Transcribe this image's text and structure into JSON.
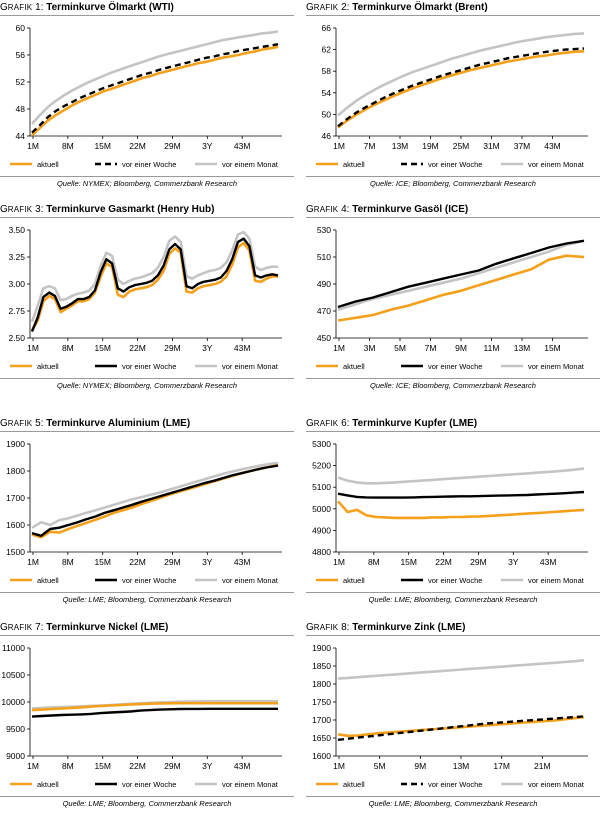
{
  "panels": [
    {
      "prefix": "G",
      "prefix_sc": "RAFIK",
      "number": " 1:",
      "name": " Terminkurve Ölmarkt (WTI)",
      "source": "Quelle: NYMEX; Bloomberg, Commerzbank Research"
    },
    {
      "prefix": "G",
      "prefix_sc": "RAFIK",
      "number": " 2:",
      "name": " Terminkurve Ölmarkt (Brent)",
      "source": "Quelle: ICE; Bloomberg, Commerzbank Research"
    },
    {
      "prefix": "G",
      "prefix_sc": "RAFIK",
      "number": " 3:",
      "name": " Terminkurve Gasmarkt (Henry Hub)",
      "source": "Quelle: NYMEX; Bloomberg, Commerzbank Research"
    },
    {
      "prefix": "G",
      "prefix_sc": "RAFIK",
      "number": " 4:",
      "name": " Terminkurve Gasöl (ICE)",
      "source": "Quelle: ICE; Bloomberg, Commerzbank Research"
    },
    {
      "prefix": "G",
      "prefix_sc": "RAFIK",
      "number": " 5:",
      "name": "  Terminkurve Aluminium (LME)",
      "source": "Quelle: LME; Bloomberg, Commerzbank Research"
    },
    {
      "prefix": "G",
      "prefix_sc": "RAFIK",
      "number": " 6:",
      "name": " Terminkurve Kupfer (LME)",
      "source": "Quelle: LME; Bloomberg, Commerzbank Research"
    },
    {
      "prefix": "G",
      "prefix_sc": "RAFIK",
      "number": " 7:",
      "name": " Terminkurve Nickel (LME)",
      "source": "Quelle: LME; Bloomberg, Commerzbank Research"
    },
    {
      "prefix": "G",
      "prefix_sc": "RAFIK",
      "number": " 8:",
      "name": " Terminkurve Zink (LME)",
      "source": "Quelle: LME; Bloomberg, Commerzbank Research"
    }
  ],
  "colors": {
    "aktuell": "#f5a01a",
    "woche": "#000000",
    "monat": "#c4c4c4",
    "axis": "#000000",
    "rule": "#9a9a9a"
  },
  "chart_data": [
    {
      "type": "line",
      "title": "Terminkurve Ölmarkt (WTI)",
      "x_labels": [
        "1M",
        "8M",
        "15M",
        "22M",
        "29M",
        "3Y",
        "43M"
      ],
      "ylim": [
        44,
        60
      ],
      "yticks": [
        44,
        48,
        52,
        56,
        60
      ],
      "dash_woche": true,
      "series": [
        {
          "name": "aktuell",
          "values": [
            44.1,
            45.2,
            46.3,
            47.1,
            47.8,
            48.5,
            49.1,
            49.6,
            50.1,
            50.6,
            51.0,
            51.4,
            51.8,
            52.2,
            52.6,
            52.9,
            53.3,
            53.6,
            53.9,
            54.2,
            54.5,
            54.8,
            55.0,
            55.3,
            55.6,
            55.8,
            56.0,
            56.3,
            56.5,
            56.8,
            57.0,
            57.2
          ]
        },
        {
          "name": "vor einer Woche",
          "values": [
            44.5,
            45.6,
            46.8,
            47.7,
            48.4,
            49.0,
            49.6,
            50.1,
            50.6,
            51.1,
            51.5,
            51.9,
            52.3,
            52.7,
            53.1,
            53.4,
            53.8,
            54.1,
            54.4,
            54.7,
            55.0,
            55.3,
            55.6,
            55.8,
            56.1,
            56.3,
            56.6,
            56.8,
            57.0,
            57.2,
            57.4,
            57.6
          ]
        },
        {
          "name": "vor einem Monat",
          "values": [
            45.8,
            47.1,
            48.3,
            49.2,
            50.0,
            50.7,
            51.3,
            51.9,
            52.4,
            52.9,
            53.4,
            53.8,
            54.2,
            54.6,
            55.0,
            55.4,
            55.8,
            56.1,
            56.4,
            56.7,
            57.0,
            57.3,
            57.6,
            57.9,
            58.2,
            58.4,
            58.6,
            58.8,
            59.0,
            59.2,
            59.3,
            59.5
          ]
        }
      ]
    },
    {
      "type": "line",
      "title": "Terminkurve Ölmarkt (Brent)",
      "x_labels": [
        "1M",
        "7M",
        "13M",
        "19M",
        "25M",
        "31M",
        "37M",
        "43M"
      ],
      "ylim": [
        46,
        66
      ],
      "yticks": [
        46,
        50,
        54,
        58,
        62,
        66
      ],
      "dash_woche": true,
      "series": [
        {
          "name": "aktuell",
          "values": [
            47.6,
            48.9,
            50.0,
            51.0,
            51.9,
            52.7,
            53.5,
            54.2,
            54.9,
            55.5,
            56.1,
            56.7,
            57.2,
            57.7,
            58.2,
            58.6,
            59.0,
            59.4,
            59.8,
            60.1,
            60.4,
            60.7,
            60.9,
            61.2,
            61.4,
            61.6,
            61.7
          ]
        },
        {
          "name": "vor einer Woche",
          "values": [
            47.8,
            49.2,
            50.4,
            51.4,
            52.3,
            53.2,
            54.0,
            54.7,
            55.4,
            56.0,
            56.6,
            57.2,
            57.7,
            58.2,
            58.7,
            59.2,
            59.6,
            60.0,
            60.4,
            60.7,
            61.0,
            61.3,
            61.6,
            61.8,
            62.0,
            62.1,
            62.2
          ]
        },
        {
          "name": "vor einem Monat",
          "values": [
            49.8,
            51.3,
            52.6,
            53.7,
            54.7,
            55.6,
            56.4,
            57.2,
            57.9,
            58.5,
            59.1,
            59.7,
            60.3,
            60.8,
            61.3,
            61.8,
            62.2,
            62.6,
            63.0,
            63.4,
            63.7,
            64.0,
            64.3,
            64.5,
            64.7,
            64.9,
            65.0
          ]
        }
      ]
    },
    {
      "type": "line",
      "title": "Terminkurve Gasmarkt (Henry Hub)",
      "x_labels": [
        "1M",
        "8M",
        "15M",
        "22M",
        "29M",
        "3Y",
        "43M"
      ],
      "ylim": [
        2.5,
        3.5
      ],
      "yticks": [
        2.5,
        2.75,
        3.0,
        3.25,
        3.5
      ],
      "ytick_labels": [
        "2.50",
        "2.75",
        "3.00",
        "3.25",
        "3.50"
      ],
      "dash_woche": false,
      "series": [
        {
          "name": "aktuell",
          "values": [
            2.57,
            2.66,
            2.84,
            2.89,
            2.86,
            2.74,
            2.77,
            2.8,
            2.84,
            2.84,
            2.86,
            2.92,
            3.07,
            3.19,
            3.16,
            2.9,
            2.88,
            2.93,
            2.95,
            2.96,
            2.97,
            2.99,
            3.04,
            3.12,
            3.28,
            3.33,
            3.29,
            2.93,
            2.92,
            2.96,
            2.98,
            2.99,
            3.0,
            3.02,
            3.07,
            3.18,
            3.34,
            3.38,
            3.31,
            3.03,
            3.02,
            3.05,
            3.07,
            3.07
          ]
        },
        {
          "name": "vor einer Woche",
          "values": [
            2.56,
            2.69,
            2.88,
            2.92,
            2.89,
            2.77,
            2.79,
            2.82,
            2.86,
            2.86,
            2.88,
            2.94,
            3.11,
            3.23,
            3.19,
            2.96,
            2.93,
            2.97,
            2.99,
            3.0,
            3.01,
            3.03,
            3.08,
            3.17,
            3.32,
            3.37,
            3.32,
            2.98,
            2.96,
            3.0,
            3.02,
            3.03,
            3.04,
            3.06,
            3.12,
            3.23,
            3.39,
            3.42,
            3.35,
            3.08,
            3.06,
            3.08,
            3.09,
            3.08
          ]
        },
        {
          "name": "vor einem Monat",
          "values": [
            2.65,
            2.8,
            2.96,
            2.98,
            2.96,
            2.85,
            2.86,
            2.89,
            2.91,
            2.92,
            2.94,
            3.0,
            3.17,
            3.29,
            3.26,
            3.04,
            3.0,
            3.03,
            3.05,
            3.06,
            3.08,
            3.1,
            3.15,
            3.25,
            3.4,
            3.44,
            3.39,
            3.07,
            3.05,
            3.08,
            3.1,
            3.12,
            3.13,
            3.15,
            3.2,
            3.31,
            3.46,
            3.48,
            3.42,
            3.16,
            3.13,
            3.15,
            3.16,
            3.16
          ]
        }
      ]
    },
    {
      "type": "line",
      "title": "Terminkurve Gasöl (ICE)",
      "x_labels": [
        "1M",
        "3M",
        "5M",
        "7M",
        "9M",
        "11M",
        "13M",
        "15M"
      ],
      "ylim": [
        450,
        530
      ],
      "yticks": [
        450,
        470,
        490,
        510,
        530
      ],
      "dash_woche": false,
      "series": [
        {
          "name": "aktuell",
          "values": [
            463,
            465,
            467,
            471,
            474,
            478,
            482,
            485,
            489,
            493,
            497,
            501,
            508,
            511,
            510
          ]
        },
        {
          "name": "vor einer Woche",
          "values": [
            473,
            477,
            480,
            484,
            488,
            491,
            494,
            497,
            500,
            505,
            509,
            513,
            517,
            520,
            522
          ]
        },
        {
          "name": "vor einem Monat",
          "values": [
            471,
            475,
            479,
            482,
            485,
            488,
            491,
            494,
            498,
            502,
            506,
            510,
            514,
            519,
            522
          ]
        }
      ]
    },
    {
      "type": "line",
      "title": "Terminkurve Aluminium (LME)",
      "x_labels": [
        "1M",
        "8M",
        "15M",
        "22M",
        "29M",
        "3Y",
        "43M"
      ],
      "ylim": [
        1500,
        1900
      ],
      "yticks": [
        1500,
        1600,
        1700,
        1800,
        1900
      ],
      "dash_woche": false,
      "series": [
        {
          "name": "aktuell",
          "values": [
            1565,
            1555,
            1575,
            1572,
            1585,
            1597,
            1608,
            1620,
            1632,
            1645,
            1655,
            1665,
            1677,
            1688,
            1700,
            1712,
            1722,
            1732,
            1742,
            1752,
            1762,
            1772,
            1782,
            1792,
            1800,
            1808,
            1815,
            1822
          ]
        },
        {
          "name": "vor einer Woche",
          "values": [
            1570,
            1560,
            1585,
            1590,
            1600,
            1610,
            1622,
            1632,
            1645,
            1655,
            1665,
            1675,
            1686,
            1696,
            1706,
            1716,
            1726,
            1736,
            1746,
            1756,
            1764,
            1774,
            1784,
            1792,
            1800,
            1808,
            1815,
            1820
          ]
        },
        {
          "name": "vor einem Monat",
          "values": [
            1590,
            1610,
            1600,
            1618,
            1625,
            1635,
            1645,
            1655,
            1665,
            1675,
            1685,
            1695,
            1703,
            1712,
            1720,
            1730,
            1740,
            1750,
            1760,
            1770,
            1780,
            1790,
            1798,
            1806,
            1813,
            1820,
            1826,
            1830
          ]
        }
      ]
    },
    {
      "type": "line",
      "title": "Terminkurve Kupfer (LME)",
      "x_labels": [
        "1M",
        "8M",
        "15M",
        "22M",
        "29M",
        "3Y",
        "43M"
      ],
      "ylim": [
        4800,
        5300
      ],
      "yticks": [
        4800,
        4900,
        5000,
        5100,
        5200,
        5300
      ],
      "dash_woche": false,
      "series": [
        {
          "name": "aktuell",
          "values": [
            5035,
            4985,
            4995,
            4970,
            4962,
            4960,
            4958,
            4958,
            4958,
            4958,
            4960,
            4960,
            4962,
            4962,
            4964,
            4965,
            4967,
            4970,
            4972,
            4975,
            4978,
            4980,
            4983,
            4986,
            4989,
            4992,
            4995
          ]
        },
        {
          "name": "vor einer Woche",
          "values": [
            5070,
            5062,
            5055,
            5053,
            5052,
            5052,
            5052,
            5052,
            5053,
            5054,
            5055,
            5056,
            5057,
            5058,
            5058,
            5059,
            5060,
            5061,
            5062,
            5063,
            5064,
            5066,
            5068,
            5070,
            5072,
            5075,
            5078
          ]
        },
        {
          "name": "vor einem Monat",
          "values": [
            5145,
            5130,
            5122,
            5118,
            5118,
            5120,
            5122,
            5125,
            5128,
            5131,
            5134,
            5137,
            5140,
            5143,
            5146,
            5149,
            5152,
            5155,
            5158,
            5161,
            5164,
            5167,
            5170,
            5173,
            5177,
            5181,
            5186
          ]
        }
      ]
    },
    {
      "type": "line",
      "title": "Terminkurve Nickel (LME)",
      "x_labels": [
        "1M",
        "8M",
        "15M",
        "22M",
        "29M",
        "3Y",
        "43M"
      ],
      "ylim": [
        9000,
        11000
      ],
      "yticks": [
        9000,
        9500,
        10000,
        10500,
        11000
      ],
      "dash_woche": false,
      "series": [
        {
          "name": "aktuell",
          "values": [
            9850,
            9860,
            9870,
            9880,
            9890,
            9900,
            9915,
            9925,
            9935,
            9945,
            9955,
            9962,
            9968,
            9972,
            9975,
            9977,
            9978,
            9978,
            9978,
            9978,
            9978,
            9978,
            9978,
            9978,
            9978,
            9978
          ]
        },
        {
          "name": "vor einer Woche",
          "values": [
            9730,
            9740,
            9750,
            9760,
            9765,
            9770,
            9780,
            9795,
            9805,
            9815,
            9825,
            9840,
            9850,
            9860,
            9865,
            9870,
            9872,
            9873,
            9874,
            9875,
            9875,
            9875,
            9875,
            9875,
            9875,
            9875
          ]
        },
        {
          "name": "vor einem Monat",
          "values": [
            9880,
            9890,
            9900,
            9905,
            9912,
            9920,
            9928,
            9936,
            9945,
            9955,
            9965,
            9975,
            9985,
            9993,
            10000,
            10005,
            10010,
            10012,
            10013,
            10014,
            10015,
            10015,
            10015,
            10015,
            10015,
            10015
          ]
        }
      ]
    },
    {
      "type": "line",
      "title": "Terminkurve Zink (LME)",
      "x_labels": [
        "1M",
        "5M",
        "9M",
        "13M",
        "17M",
        "21M"
      ],
      "ylim": [
        1600,
        1900
      ],
      "yticks": [
        1600,
        1650,
        1700,
        1750,
        1800,
        1850,
        1900
      ],
      "dash_woche": true,
      "series": [
        {
          "name": "aktuell",
          "values": [
            1660,
            1656,
            1657,
            1660,
            1663,
            1665,
            1667,
            1669,
            1671,
            1673,
            1675,
            1677,
            1679,
            1681,
            1683,
            1685,
            1687,
            1689,
            1691,
            1693,
            1695,
            1697,
            1699,
            1702,
            1705,
            1708
          ]
        },
        {
          "name": "vor einer Woche",
          "values": [
            1645,
            1648,
            1651,
            1654,
            1657,
            1660,
            1663,
            1666,
            1669,
            1672,
            1675,
            1678,
            1681,
            1684,
            1687,
            1690,
            1692,
            1694,
            1696,
            1698,
            1700,
            1702,
            1704,
            1706,
            1708,
            1710
          ]
        },
        {
          "name": "vor einem Monat",
          "values": [
            1815,
            1817,
            1819,
            1821,
            1823,
            1825,
            1827,
            1829,
            1831,
            1833,
            1835,
            1837,
            1839,
            1841,
            1843,
            1845,
            1847,
            1849,
            1851,
            1853,
            1855,
            1857,
            1859,
            1861,
            1863,
            1866
          ]
        }
      ]
    }
  ]
}
